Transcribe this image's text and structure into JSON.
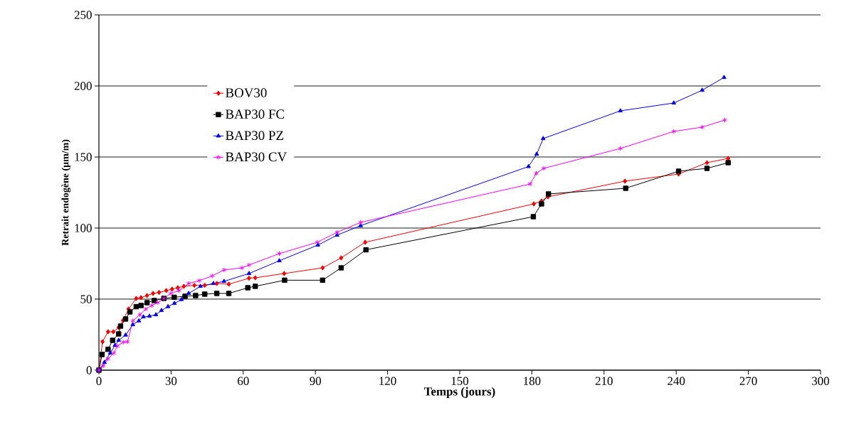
{
  "chart_data": {
    "type": "line",
    "xlabel": "Temps (jours)",
    "ylabel": "Retrait endogène (µm/m)",
    "xlim": [
      0,
      300
    ],
    "xticks": [
      0,
      30,
      60,
      90,
      120,
      150,
      180,
      210,
      240,
      270,
      300
    ],
    "ylim": [
      0,
      250
    ],
    "yticks": [
      0,
      50,
      100,
      150,
      200,
      250
    ],
    "grid": "y",
    "legend": "top left",
    "series": [
      {
        "name": "BOV30",
        "color": "#ff0000",
        "marker": "diamond",
        "x": [
          0,
          1.5,
          3.8,
          6,
          8.2,
          10,
          12.3,
          15.5,
          17.5,
          20,
          22.5,
          25,
          28,
          30.4,
          32.8,
          35.3,
          39.7,
          44,
          49,
          54,
          62.4,
          65,
          77,
          93,
          100.7,
          110.7,
          180.8,
          184,
          186.7,
          218.7,
          241,
          252.8,
          261.6
        ],
        "values": [
          0,
          20,
          27,
          27,
          30,
          35,
          43,
          50.5,
          51,
          52.5,
          54,
          54.7,
          56,
          57,
          58,
          59,
          59.7,
          59.7,
          61,
          60.5,
          64.7,
          65,
          68,
          72,
          79,
          90,
          117,
          119,
          122,
          133,
          138,
          146,
          149
        ]
      },
      {
        "name": "BAP30 FC",
        "color": "#000000",
        "marker": "square",
        "x": [
          0,
          1.3,
          3.8,
          5.7,
          8.2,
          9,
          11.1,
          12.9,
          15.5,
          17.5,
          20,
          23,
          27,
          31.3,
          35.8,
          40.2,
          44,
          49,
          54,
          61.9,
          65,
          77.2,
          93,
          100.7,
          111,
          180.6,
          184,
          186.9,
          219,
          241,
          252.8,
          261.6
        ],
        "values": [
          0,
          11,
          14.7,
          21,
          25.5,
          31,
          36,
          41,
          44.7,
          45.5,
          47.5,
          49,
          50.5,
          51.3,
          52,
          52.5,
          53.5,
          54,
          54,
          58,
          59,
          63.3,
          63.3,
          72,
          84.7,
          108,
          117,
          124,
          128,
          140,
          142,
          146
        ]
      },
      {
        "name": "BAP30 PZ",
        "color": "#0000ff",
        "marker": "triangle",
        "x": [
          0,
          2.3,
          4.7,
          6.7,
          8.2,
          11.1,
          14.1,
          16.6,
          18.5,
          21,
          23.7,
          26,
          28.7,
          31.4,
          34.3,
          37.3,
          42.2,
          47.6,
          52,
          62.4,
          75,
          91,
          99,
          108.8,
          178.6,
          182,
          184.7,
          216.8,
          239,
          250.8,
          259.9
        ],
        "values": [
          0,
          5.5,
          12,
          17.5,
          21,
          24.7,
          32,
          34.7,
          37.5,
          38,
          39,
          42,
          44.7,
          47,
          49.7,
          54,
          59,
          61,
          62.5,
          68,
          77,
          88,
          95,
          101.7,
          143.3,
          152,
          163,
          182.5,
          188,
          197,
          206
        ]
      },
      {
        "name": "BAP30 CV",
        "color": "#ff00ff",
        "marker": "cross",
        "x": [
          0,
          1.8,
          3.8,
          6.2,
          7.7,
          10.1,
          11.9,
          14.1,
          17,
          19.5,
          22,
          24.5,
          27,
          29.9,
          33.3,
          37.3,
          41.7,
          47.1,
          52,
          59.5,
          62.4,
          75,
          90.8,
          99,
          108.8,
          179.3,
          181.8,
          184.9,
          216.8,
          239,
          250.8,
          260.2
        ],
        "values": [
          0,
          3,
          8,
          12,
          17,
          19.7,
          20,
          34.7,
          39,
          43,
          45.5,
          47.5,
          50.5,
          54,
          56,
          61,
          63,
          66.3,
          70.5,
          72,
          74,
          82,
          90,
          97,
          104,
          131,
          138.5,
          142,
          156,
          168,
          171,
          176
        ]
      }
    ]
  }
}
